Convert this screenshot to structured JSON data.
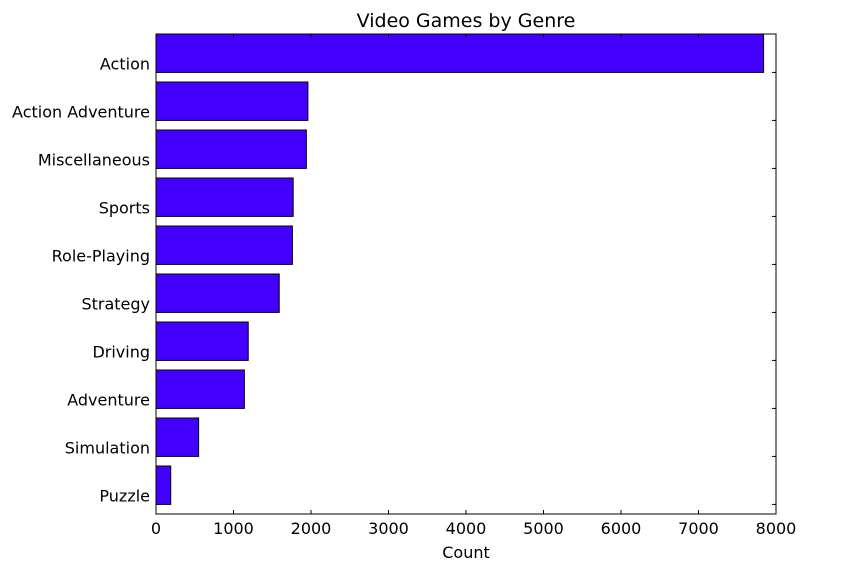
{
  "chart_data": {
    "type": "bar",
    "orientation": "horizontal",
    "title": "Video Games by Genre",
    "xlabel": "Count",
    "ylabel": "",
    "categories": [
      "Action",
      "Action Adventure",
      "Miscellaneous",
      "Sports",
      "Role-Playing",
      "Strategy",
      "Driving",
      "Adventure",
      "Simulation",
      "Puzzle"
    ],
    "values": [
      7840,
      1960,
      1940,
      1770,
      1760,
      1590,
      1190,
      1140,
      550,
      190
    ],
    "xlim": [
      0,
      8000
    ],
    "xticks": [
      0,
      1000,
      2000,
      3000,
      4000,
      5000,
      6000,
      7000,
      8000
    ],
    "grid": false,
    "bar_color": "#4400ff",
    "edge_color": "#000000"
  }
}
